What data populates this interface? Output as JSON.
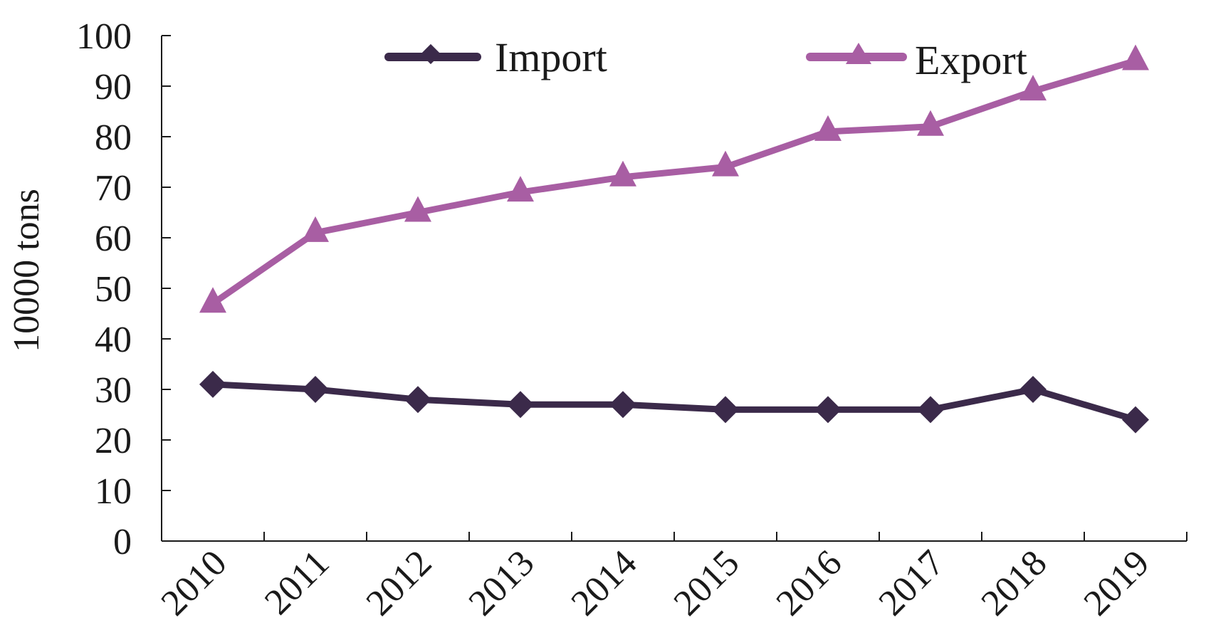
{
  "chart_data": {
    "type": "line",
    "categories": [
      "2010",
      "2011",
      "2012",
      "2013",
      "2014",
      "2015",
      "2016",
      "2017",
      "2018",
      "2019"
    ],
    "series": [
      {
        "name": "Import",
        "values": [
          31,
          30,
          28,
          27,
          27,
          26,
          26,
          26,
          30,
          24
        ],
        "color": "#3b2a4a",
        "marker": "diamond"
      },
      {
        "name": "Export",
        "values": [
          47,
          61,
          65,
          69,
          72,
          74,
          81,
          82,
          89,
          95
        ],
        "color": "#a85ea3",
        "marker": "triangle"
      }
    ],
    "ylabel": "10000 tons",
    "xlabel": "",
    "ylim": [
      0,
      100
    ],
    "yticks": [
      "0",
      "10",
      "20",
      "30",
      "40",
      "50",
      "60",
      "70",
      "80",
      "90",
      "100"
    ],
    "grid": false,
    "legend_position": "top"
  }
}
